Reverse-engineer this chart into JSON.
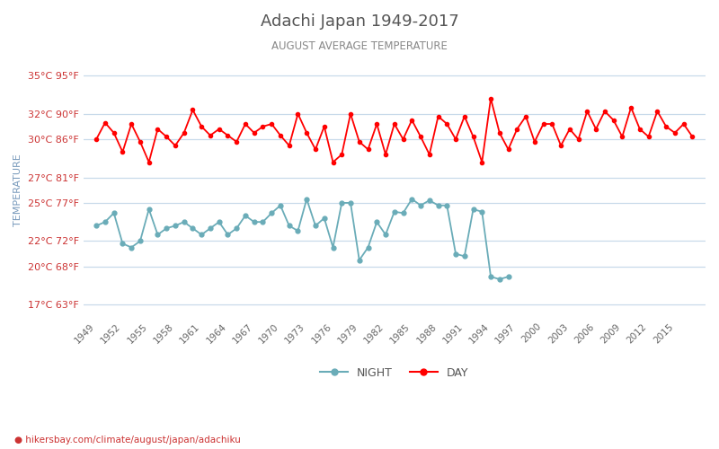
{
  "title": "Adachi Japan 1949-2017",
  "subtitle": "AUGUST AVERAGE TEMPERATURE",
  "ylabel": "TEMPERATURE",
  "footer": "hikersbay.com/climate/august/japan/adachiku",
  "years": [
    1949,
    1950,
    1951,
    1952,
    1953,
    1954,
    1955,
    1956,
    1957,
    1958,
    1959,
    1960,
    1961,
    1962,
    1963,
    1964,
    1965,
    1966,
    1967,
    1968,
    1969,
    1970,
    1971,
    1972,
    1973,
    1974,
    1975,
    1976,
    1977,
    1978,
    1979,
    1980,
    1981,
    1982,
    1983,
    1984,
    1985,
    1986,
    1987,
    1988,
    1989,
    1990,
    1991,
    1992,
    1993,
    1994,
    1995,
    1996
  ],
  "day_years": [
    1949,
    1950,
    1951,
    1952,
    1953,
    1954,
    1955,
    1956,
    1957,
    1958,
    1959,
    1960,
    1961,
    1962,
    1963,
    1964,
    1965,
    1966,
    1967,
    1968,
    1969,
    1970,
    1971,
    1972,
    1973,
    1974,
    1975,
    1976,
    1977,
    1978,
    1979,
    1980,
    1981,
    1982,
    1983,
    1984,
    1985,
    1986,
    1987,
    1988,
    1989,
    1990,
    1991,
    1992,
    1993,
    1994,
    1995,
    1996,
    1997,
    1998,
    1999,
    2000,
    2001,
    2002,
    2003,
    2004,
    2005,
    2006,
    2007,
    2008,
    2009,
    2010,
    2011,
    2012,
    2013,
    2014,
    2015,
    2016,
    2017
  ],
  "day_temps": [
    30.0,
    31.3,
    30.5,
    29.0,
    31.2,
    29.8,
    28.2,
    30.8,
    30.2,
    29.5,
    30.5,
    32.3,
    31.0,
    30.3,
    30.8,
    30.3,
    29.8,
    31.2,
    30.5,
    31.0,
    31.2,
    30.3,
    29.5,
    32.0,
    30.5,
    29.2,
    31.0,
    28.2,
    28.8,
    32.0,
    29.8,
    29.2,
    31.2,
    28.8,
    31.2,
    30.0,
    31.5,
    30.2,
    28.8,
    31.8,
    31.2,
    30.0,
    31.8,
    30.2,
    28.2,
    33.2,
    30.5,
    29.2,
    30.8,
    31.8,
    29.8,
    31.2,
    31.2,
    29.5,
    30.8,
    30.0,
    32.2,
    30.8,
    32.2,
    31.5,
    30.2,
    32.5,
    30.8,
    30.2,
    32.2,
    31.0,
    30.5,
    31.2,
    30.2
  ],
  "night_temps": [
    23.2,
    23.5,
    24.2,
    21.8,
    21.5,
    22.0,
    24.5,
    22.5,
    23.0,
    23.2,
    23.5,
    23.0,
    22.5,
    23.0,
    23.5,
    22.5,
    23.0,
    24.0,
    23.5,
    23.5,
    24.2,
    24.8,
    23.2,
    22.8,
    25.3,
    23.2,
    23.8,
    21.5,
    25.0,
    25.0,
    20.5,
    21.5,
    23.5,
    22.5,
    24.3,
    24.2,
    25.3,
    24.8,
    25.2,
    24.8,
    24.8,
    21.0,
    20.8,
    24.5,
    24.3,
    19.2,
    19.0,
    19.2
  ],
  "day_color": "#ff0000",
  "night_color": "#6aacb8",
  "title_color": "#555555",
  "subtitle_color": "#888888",
  "label_color": "#cc3333",
  "ytick_labels_C": [
    "35°C",
    "32°C",
    "30°C",
    "27°C",
    "25°C",
    "22°C",
    "20°C",
    "17°C"
  ],
  "ytick_labels_F": [
    "95°F",
    "90°F",
    "86°F",
    "81°F",
    "77°F",
    "72°F",
    "68°F",
    "63°F"
  ],
  "ytick_vals": [
    35,
    32,
    30,
    27,
    25,
    22,
    20,
    17
  ],
  "ylim": [
    16,
    36
  ],
  "bg_color": "#ffffff",
  "grid_color": "#c8daea",
  "footer_color": "#cc3333",
  "legend_night_label": "NIGHT",
  "legend_day_label": "DAY"
}
